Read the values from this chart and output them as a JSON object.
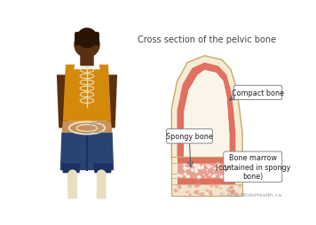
{
  "title": "Cross section of the pelvic bone",
  "title_fontsize": 7.0,
  "title_color": "#444444",
  "bg_color": "#ffffff",
  "label_compact_bone": "Compact bone",
  "label_spongy_bone": "Spongy bone",
  "label_bone_marrow": "Bone marrow\n(contained in spongy\nbone)",
  "label_fontsize": 5.8,
  "copyright": "© AboutKidsHealth.ca",
  "copyright_fontsize": 4.5,
  "outer_bone_color": "#f5ecd5",
  "bone_outline_color": "#c8a868",
  "compact_bone_color": "#e07060",
  "spongy_bone_top_color": "#e87060",
  "bone_marrow_color": "#f2e2ce",
  "skin_color": "#5a3010",
  "shirt_color": "#d4890a",
  "pants_color": "#2a4472",
  "bone_white": "#e8dfc0"
}
